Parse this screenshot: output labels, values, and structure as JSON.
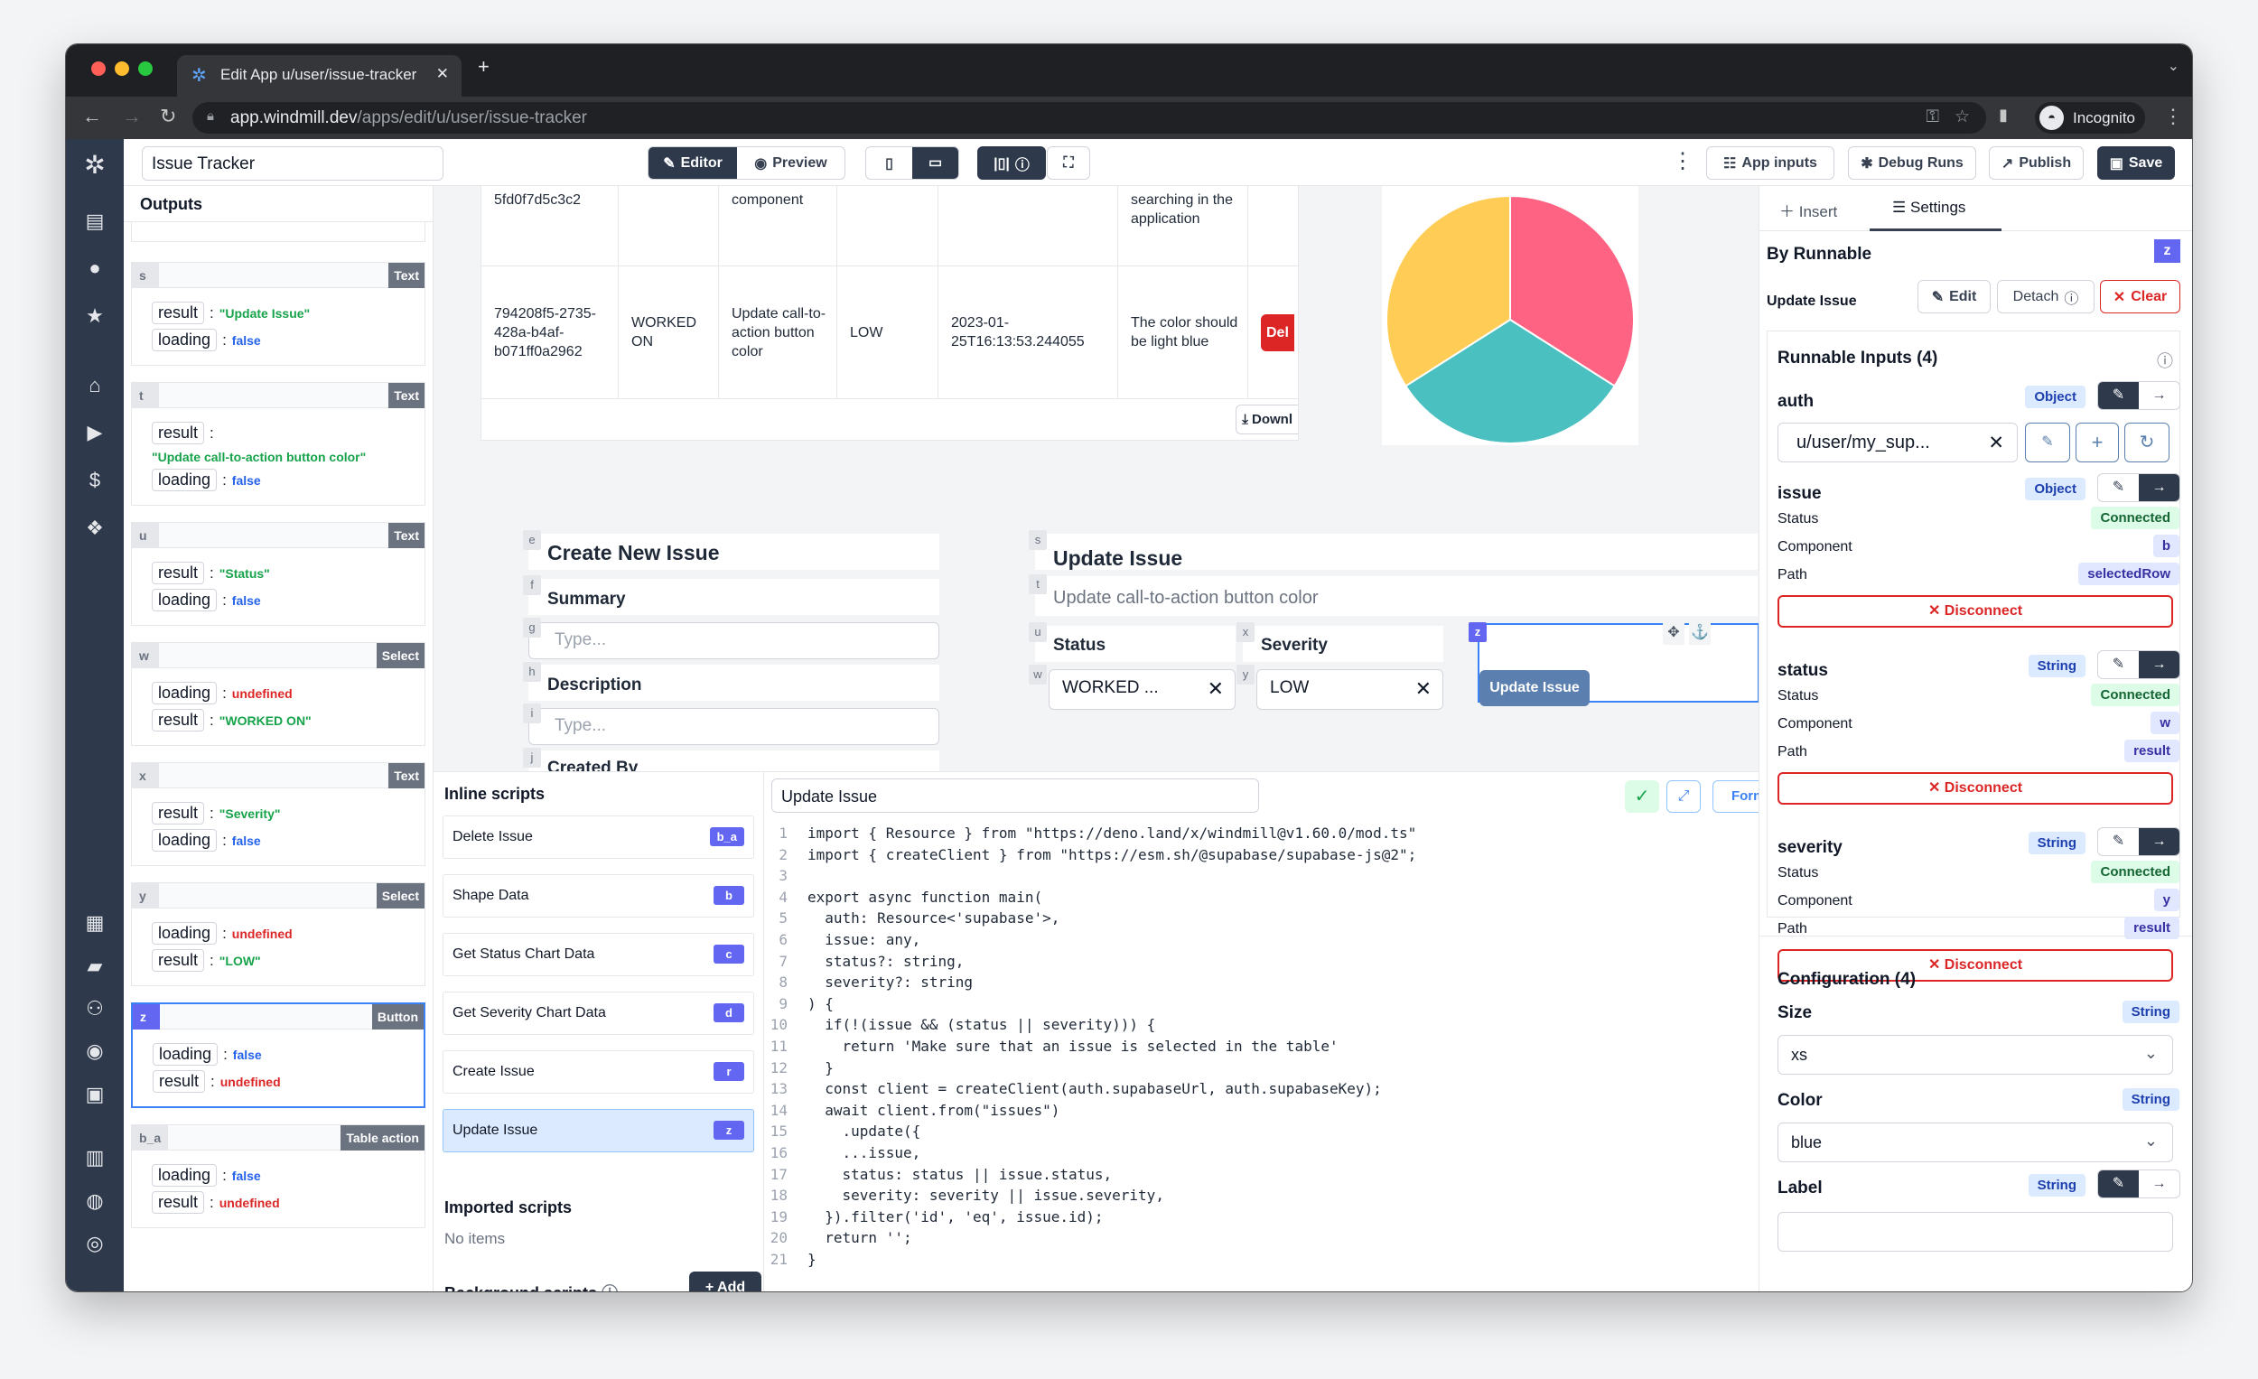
{
  "browser": {
    "tab_title": "Edit App u/user/issue-tracker",
    "url_host": "app.windmill.dev",
    "url_path": "/apps/edit/u/user/issue-tracker",
    "profile": "Incognito"
  },
  "toolbar": {
    "app_name": "Issue Tracker",
    "editor": "Editor",
    "preview": "Preview",
    "app_inputs": "App inputs",
    "debug_runs": "Debug Runs",
    "publish": "Publish",
    "save": "Save"
  },
  "outputs": {
    "title": "Outputs",
    "cards": [
      {
        "id": "s",
        "type": "Text",
        "fields": [
          {
            "key": "result",
            "value": "\"Update Issue\"",
            "kind": "str"
          },
          {
            "key": "loading",
            "value": "false",
            "kind": "bool"
          }
        ]
      },
      {
        "id": "t",
        "type": "Text",
        "fields": [
          {
            "key": "result",
            "value": "\"Update call-to-action button color\"",
            "kind": "str"
          },
          {
            "key": "loading",
            "value": "false",
            "kind": "bool"
          }
        ]
      },
      {
        "id": "u",
        "type": "Text",
        "fields": [
          {
            "key": "result",
            "value": "\"Status\"",
            "kind": "str"
          },
          {
            "key": "loading",
            "value": "false",
            "kind": "bool"
          }
        ]
      },
      {
        "id": "w",
        "type": "Select",
        "fields": [
          {
            "key": "loading",
            "value": "undefined",
            "kind": "und"
          },
          {
            "key": "result",
            "value": "\"WORKED ON\"",
            "kind": "str"
          }
        ]
      },
      {
        "id": "x",
        "type": "Text",
        "fields": [
          {
            "key": "result",
            "value": "\"Severity\"",
            "kind": "str"
          },
          {
            "key": "loading",
            "value": "false",
            "kind": "bool"
          }
        ]
      },
      {
        "id": "y",
        "type": "Select",
        "fields": [
          {
            "key": "loading",
            "value": "undefined",
            "kind": "und"
          },
          {
            "key": "result",
            "value": "\"LOW\"",
            "kind": "str"
          }
        ]
      },
      {
        "id": "z",
        "type": "Button",
        "selected": true,
        "fields": [
          {
            "key": "loading",
            "value": "false",
            "kind": "bool"
          },
          {
            "key": "result",
            "value": "undefined",
            "kind": "und"
          }
        ]
      },
      {
        "id": "b_a",
        "type": "Table action",
        "fields": [
          {
            "key": "loading",
            "value": "false",
            "kind": "bool"
          },
          {
            "key": "result",
            "value": "undefined",
            "kind": "und"
          }
        ]
      }
    ]
  },
  "table": {
    "rows": [
      [
        "5fd0f7d5c3c2",
        "",
        "component",
        "",
        "",
        "searching in the application",
        ""
      ],
      [
        "794208f5-2735-428a-b4af-b071ff0a2962",
        "WORKED ON",
        "Update call-to-action button color",
        "LOW",
        "2023-01-25T16:13:53.244055",
        "The color should be light blue",
        "Del"
      ]
    ],
    "download": "Downl"
  },
  "chart_data": {
    "type": "pie",
    "values": [
      0.34,
      0.32,
      0.34
    ],
    "colors": [
      "#ff6384",
      "#4bc0c0",
      "#ffcd56"
    ]
  },
  "create_form": {
    "title": "Create New Issue",
    "summary_label": "Summary",
    "summary_placeholder": "Type...",
    "description_label": "Description",
    "description_placeholder": "Type...",
    "created_by_label": "Created By",
    "tags": {
      "title": "e",
      "summary": "f",
      "summary_input": "g",
      "description": "h",
      "description_input": "i",
      "created_by": "j"
    }
  },
  "update_form": {
    "title": "Update Issue",
    "summary": "Update call-to-action button color",
    "status_label": "Status",
    "severity_label": "Severity",
    "status_value": "WORKED ...",
    "severity_value": "LOW",
    "button": "Update Issue",
    "tags": {
      "title": "s",
      "summary": "t",
      "status_label": "u",
      "severity_label": "x",
      "status_select": "w",
      "severity_select": "y",
      "button": "z"
    }
  },
  "scripts": {
    "inline_title": "Inline scripts",
    "items": [
      {
        "name": "Delete Issue",
        "id": "b_a"
      },
      {
        "name": "Shape Data",
        "id": "b"
      },
      {
        "name": "Get Status Chart Data",
        "id": "c"
      },
      {
        "name": "Get Severity Chart Data",
        "id": "d"
      },
      {
        "name": "Create Issue",
        "id": "r"
      },
      {
        "name": "Update Issue",
        "id": "z",
        "selected": true
      }
    ],
    "imported_title": "Imported scripts",
    "imported_empty": "No items",
    "background_title": "Background scripts",
    "add": "+ Add"
  },
  "editor": {
    "script_name": "Update Issue",
    "format": "Format",
    "lines": [
      "import { Resource } from \"https://deno.land/x/windmill@v1.60.0/mod.ts\"",
      "import { createClient } from \"https://esm.sh/@supabase/supabase-js@2\";",
      "",
      "export async function main(",
      "  auth: Resource<'supabase'>,",
      "  issue: any,",
      "  status?: string,",
      "  severity?: string",
      ") {",
      "  if(!(issue && (status || severity))) {",
      "    return 'Make sure that an issue is selected in the table'",
      "  }",
      "  const client = createClient(auth.supabaseUrl, auth.supabaseKey);",
      "  await client.from(\"issues\")",
      "    .update({",
      "    ...issue,",
      "    status: status || issue.status,",
      "    severity: severity || issue.severity,",
      "  }).filter('id', 'eq', issue.id);",
      "  return '';",
      "}"
    ]
  },
  "panel": {
    "tab_insert": "Insert",
    "tab_settings": "Settings",
    "by_runnable": "By Runnable",
    "component_id": "z",
    "runnable_name": "Update Issue",
    "edit": "Edit",
    "detach": "Detach",
    "clear": "Clear",
    "inputs_title": "Runnable Inputs (4)",
    "auth": {
      "name": "auth",
      "type": "Object",
      "value": "u/user/my_sup..."
    },
    "labels": {
      "status": "Status",
      "component": "Component",
      "path": "Path",
      "disconnect": "Disconnect"
    },
    "connected_inputs": [
      {
        "name": "issue",
        "type": "Object",
        "status": "Connected",
        "component": "b",
        "path": "selectedRow"
      },
      {
        "name": "status",
        "type": "String",
        "status": "Connected",
        "component": "w",
        "path": "result"
      },
      {
        "name": "severity",
        "type": "String",
        "status": "Connected",
        "component": "y",
        "path": "result"
      }
    ],
    "config_title": "Configuration (4)",
    "config": [
      {
        "name": "Size",
        "type": "String",
        "value": "xs"
      },
      {
        "name": "Color",
        "type": "String",
        "value": "blue"
      },
      {
        "name": "Label",
        "type": "String"
      }
    ]
  }
}
